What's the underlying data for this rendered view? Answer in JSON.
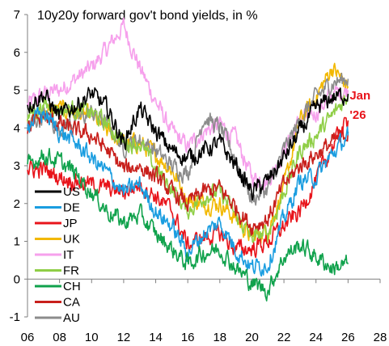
{
  "chart_data": {
    "type": "line",
    "title": "10y20y forward gov't bond yields, in %",
    "xlabel": "",
    "ylabel": "",
    "xlim": [
      2006,
      2028
    ],
    "ylim": [
      -1,
      7
    ],
    "xticks": [
      "06",
      "08",
      "10",
      "12",
      "14",
      "16",
      "18",
      "20",
      "22",
      "24",
      "26",
      "28"
    ],
    "yticks": [
      "-1",
      "0",
      "1",
      "2",
      "3",
      "4",
      "5",
      "6",
      "7"
    ],
    "grid": false,
    "legend_position": "left",
    "annotation": {
      "lines": [
        "Jan",
        "'26"
      ],
      "color": "#e8141b",
      "x": 2026.1,
      "y": 4.75
    },
    "series": [
      {
        "name": "US",
        "color": "#000000",
        "points": [
          [
            2006,
            4.6
          ],
          [
            2007,
            4.9
          ],
          [
            2008,
            4.3
          ],
          [
            2009,
            4.6
          ],
          [
            2010,
            4.9
          ],
          [
            2011,
            4.5
          ],
          [
            2012,
            3.6
          ],
          [
            2013,
            4.5
          ],
          [
            2014,
            3.9
          ],
          [
            2015,
            3.4
          ],
          [
            2016,
            3.2
          ],
          [
            2017,
            3.4
          ],
          [
            2018,
            3.6
          ],
          [
            2019,
            3.0
          ],
          [
            2020,
            2.3
          ],
          [
            2021,
            2.6
          ],
          [
            2022,
            3.2
          ],
          [
            2023,
            3.9
          ],
          [
            2024,
            4.5
          ],
          [
            2025,
            4.8
          ],
          [
            2026,
            4.9
          ]
        ]
      },
      {
        "name": "DE",
        "color": "#1a9de0",
        "points": [
          [
            2006,
            4.1
          ],
          [
            2007,
            4.4
          ],
          [
            2008,
            3.9
          ],
          [
            2009,
            3.6
          ],
          [
            2010,
            3.2
          ],
          [
            2011,
            2.8
          ],
          [
            2012,
            2.3
          ],
          [
            2013,
            2.5
          ],
          [
            2014,
            1.8
          ],
          [
            2015,
            1.4
          ],
          [
            2016,
            0.7
          ],
          [
            2017,
            1.2
          ],
          [
            2018,
            1.5
          ],
          [
            2019,
            0.8
          ],
          [
            2020,
            0.3
          ],
          [
            2021,
            0.4
          ],
          [
            2022,
            1.6
          ],
          [
            2023,
            2.6
          ],
          [
            2024,
            2.7
          ],
          [
            2025,
            3.3
          ],
          [
            2026,
            3.8
          ]
        ]
      },
      {
        "name": "JP",
        "color": "#e8141b",
        "points": [
          [
            2006,
            2.9
          ],
          [
            2007,
            2.9
          ],
          [
            2008,
            2.7
          ],
          [
            2009,
            2.6
          ],
          [
            2010,
            2.5
          ],
          [
            2011,
            2.4
          ],
          [
            2012,
            2.3
          ],
          [
            2013,
            2.5
          ],
          [
            2014,
            2.2
          ],
          [
            2015,
            1.8
          ],
          [
            2016,
            0.9
          ],
          [
            2017,
            1.1
          ],
          [
            2018,
            1.2
          ],
          [
            2019,
            0.8
          ],
          [
            2020,
            0.8
          ],
          [
            2021,
            1.0
          ],
          [
            2022,
            1.4
          ],
          [
            2023,
            1.8
          ],
          [
            2024,
            2.6
          ],
          [
            2025,
            3.5
          ],
          [
            2026,
            4.2
          ]
        ]
      },
      {
        "name": "UK",
        "color": "#f2b800",
        "points": [
          [
            2006,
            4.2
          ],
          [
            2007,
            4.4
          ],
          [
            2008,
            4.5
          ],
          [
            2009,
            4.4
          ],
          [
            2010,
            4.3
          ],
          [
            2011,
            3.9
          ],
          [
            2012,
            3.6
          ],
          [
            2013,
            3.6
          ],
          [
            2014,
            3.3
          ],
          [
            2015,
            2.9
          ],
          [
            2016,
            2.1
          ],
          [
            2017,
            2.0
          ],
          [
            2018,
            2.0
          ],
          [
            2019,
            1.6
          ],
          [
            2020,
            1.1
          ],
          [
            2021,
            1.3
          ],
          [
            2022,
            2.4
          ],
          [
            2023,
            4.2
          ],
          [
            2024,
            4.8
          ],
          [
            2025,
            5.6
          ],
          [
            2026,
            5.1
          ]
        ]
      },
      {
        "name": "IT",
        "color": "#f6a0ec",
        "points": [
          [
            2006,
            4.6
          ],
          [
            2007,
            4.9
          ],
          [
            2008,
            5.0
          ],
          [
            2009,
            5.3
          ],
          [
            2010,
            5.6
          ],
          [
            2011,
            6.1
          ],
          [
            2012,
            6.7
          ],
          [
            2013,
            5.6
          ],
          [
            2014,
            4.7
          ],
          [
            2015,
            3.9
          ],
          [
            2016,
            3.5
          ],
          [
            2017,
            3.9
          ],
          [
            2018,
            4.1
          ],
          [
            2019,
            3.7
          ],
          [
            2020,
            2.7
          ],
          [
            2021,
            2.6
          ],
          [
            2022,
            3.4
          ],
          [
            2023,
            4.2
          ],
          [
            2024,
            4.4
          ],
          [
            2025,
            4.9
          ],
          [
            2026,
            5.0
          ]
        ]
      },
      {
        "name": "FR",
        "color": "#8fce46",
        "points": [
          [
            2006,
            4.3
          ],
          [
            2007,
            4.6
          ],
          [
            2008,
            4.5
          ],
          [
            2009,
            4.5
          ],
          [
            2010,
            4.4
          ],
          [
            2011,
            4.1
          ],
          [
            2012,
            3.6
          ],
          [
            2013,
            3.6
          ],
          [
            2014,
            2.9
          ],
          [
            2015,
            2.4
          ],
          [
            2016,
            1.8
          ],
          [
            2017,
            2.2
          ],
          [
            2018,
            2.3
          ],
          [
            2019,
            1.7
          ],
          [
            2020,
            1.1
          ],
          [
            2021,
            1.2
          ],
          [
            2022,
            2.3
          ],
          [
            2023,
            3.4
          ],
          [
            2024,
            3.8
          ],
          [
            2025,
            4.3
          ],
          [
            2026,
            4.9
          ]
        ]
      },
      {
        "name": "CH",
        "color": "#10a24c",
        "points": [
          [
            2006,
            3.0
          ],
          [
            2007,
            3.3
          ],
          [
            2008,
            3.1
          ],
          [
            2009,
            2.8
          ],
          [
            2010,
            2.3
          ],
          [
            2011,
            1.8
          ],
          [
            2012,
            1.5
          ],
          [
            2013,
            1.7
          ],
          [
            2014,
            1.2
          ],
          [
            2015,
            0.8
          ],
          [
            2016,
            0.4
          ],
          [
            2017,
            0.7
          ],
          [
            2018,
            0.8
          ],
          [
            2019,
            0.3
          ],
          [
            2020,
            -0.1
          ],
          [
            2021,
            -0.3
          ],
          [
            2022,
            0.6
          ],
          [
            2023,
            0.9
          ],
          [
            2024,
            0.6
          ],
          [
            2025,
            0.3
          ],
          [
            2026,
            0.4
          ]
        ]
      },
      {
        "name": "CA",
        "color": "#c8201c",
        "points": [
          [
            2006,
            4.0
          ],
          [
            2007,
            4.3
          ],
          [
            2008,
            4.1
          ],
          [
            2009,
            3.9
          ],
          [
            2010,
            3.8
          ],
          [
            2011,
            3.4
          ],
          [
            2012,
            2.9
          ],
          [
            2013,
            3.0
          ],
          [
            2014,
            2.7
          ],
          [
            2015,
            2.3
          ],
          [
            2016,
            2.0
          ],
          [
            2017,
            2.3
          ],
          [
            2018,
            2.4
          ],
          [
            2019,
            1.9
          ],
          [
            2020,
            1.4
          ],
          [
            2021,
            1.6
          ],
          [
            2022,
            2.5
          ],
          [
            2023,
            3.0
          ],
          [
            2024,
            3.3
          ],
          [
            2025,
            3.6
          ],
          [
            2026,
            3.9
          ]
        ]
      },
      {
        "name": "AU",
        "color": "#8c8c8c",
        "points": [
          [
            2006,
            4.1
          ],
          [
            2007,
            4.3
          ],
          [
            2008,
            4.0
          ],
          [
            2009,
            4.2
          ],
          [
            2010,
            4.4
          ],
          [
            2011,
            4.1
          ],
          [
            2012,
            3.5
          ],
          [
            2013,
            3.7
          ],
          [
            2014,
            3.4
          ],
          [
            2015,
            3.0
          ],
          [
            2016,
            2.8
          ],
          [
            2017,
            4.3
          ],
          [
            2018,
            4.0
          ],
          [
            2019,
            3.2
          ],
          [
            2020,
            2.1
          ],
          [
            2021,
            2.4
          ],
          [
            2022,
            3.4
          ],
          [
            2023,
            4.2
          ],
          [
            2024,
            4.8
          ],
          [
            2025,
            5.2
          ],
          [
            2026,
            5.3
          ]
        ]
      }
    ]
  }
}
